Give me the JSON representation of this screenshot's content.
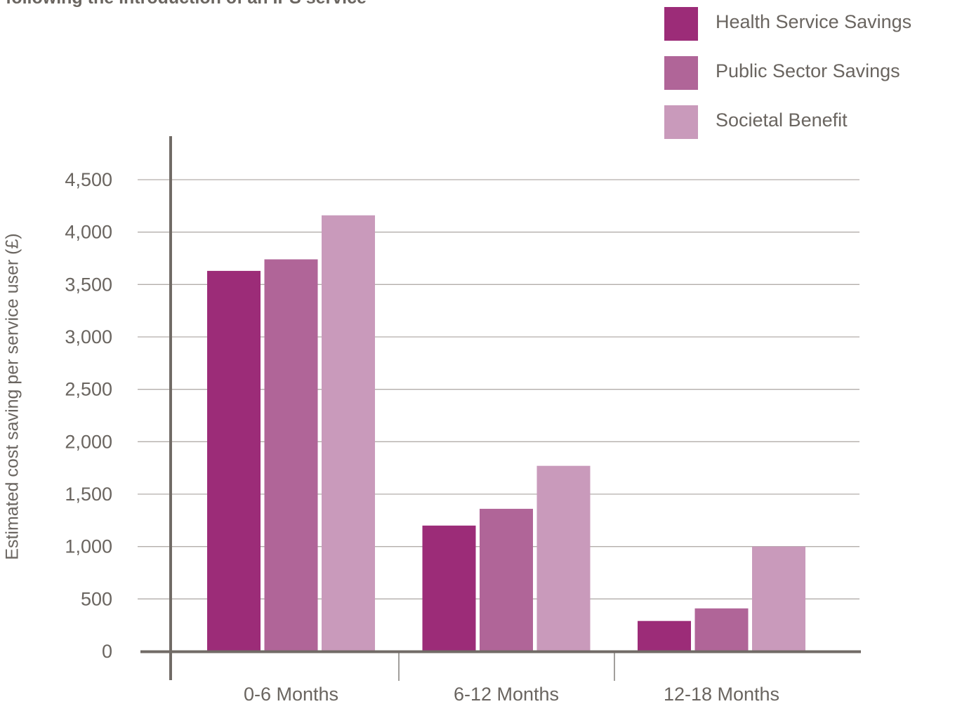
{
  "chart_data": {
    "type": "bar",
    "title": "following the introduction of an IPS service",
    "xlabel": "",
    "ylabel": "Estimated cost saving per service user (£)",
    "categories": [
      "0-6 Months",
      "6-12 Months",
      "12-18 Months"
    ],
    "series": [
      {
        "name": "Health Service Savings",
        "color": "#9c2c78",
        "values": [
          3630,
          1200,
          290
        ]
      },
      {
        "name": "Public Sector Savings",
        "color": "#b06598",
        "values": [
          3740,
          1360,
          410
        ]
      },
      {
        "name": "Societal Benefit",
        "color": "#c99abb",
        "values": [
          4160,
          1770,
          1000
        ]
      }
    ],
    "ylim": [
      0,
      4500
    ],
    "yticks": [
      0,
      500,
      1000,
      1500,
      2000,
      2500,
      3000,
      3500,
      4000,
      4500
    ],
    "ytick_labels": [
      "0",
      "500",
      "1,000",
      "1,500",
      "2,000",
      "2,500",
      "3,000",
      "3,500",
      "4,000",
      "4,500"
    ],
    "grid": true,
    "legend_position": "top-right"
  }
}
